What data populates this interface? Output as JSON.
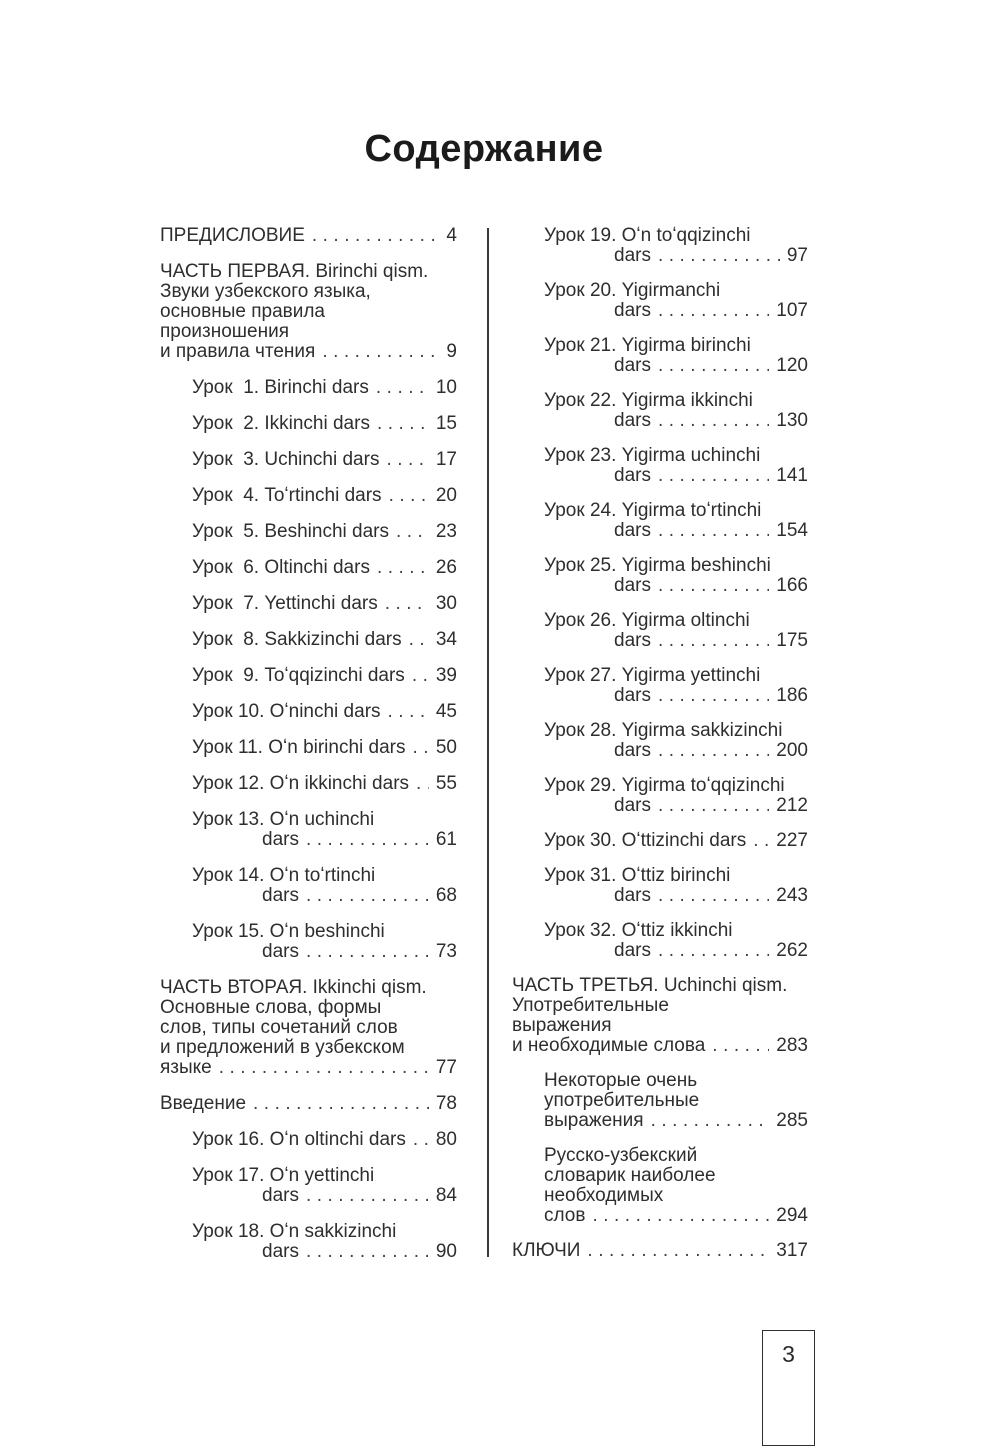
{
  "page": {
    "title": "Содержание",
    "page_number": "3"
  },
  "colors": {
    "ink": "#2e2e2e",
    "background": "#ffffff"
  },
  "left_column": {
    "items": [
      {
        "type": "chapter",
        "lines": [
          "ПРЕДИСЛОВИЕ"
        ],
        "page": "4"
      },
      {
        "type": "chapter",
        "lines": [
          "ЧАСТЬ ПЕРВАЯ. Birinchi qism.",
          "Звуки узбекского языка,",
          "основные правила",
          "произношения",
          "и правила чтения"
        ],
        "page": "9"
      },
      {
        "type": "lesson",
        "lines": [
          "Урок  1. Birinchi dars"
        ],
        "page": "10"
      },
      {
        "type": "lesson",
        "lines": [
          "Урок  2. Ikkinchi dars"
        ],
        "page": "15"
      },
      {
        "type": "lesson",
        "lines": [
          "Урок  3. Uchinchi dars"
        ],
        "page": "17"
      },
      {
        "type": "lesson",
        "lines": [
          "Урок  4. Toʻrtinchi dars"
        ],
        "page": "20"
      },
      {
        "type": "lesson",
        "lines": [
          "Урок  5. Beshinchi dars"
        ],
        "page": "23"
      },
      {
        "type": "lesson",
        "lines": [
          "Урок  6. Oltinchi dars"
        ],
        "page": "26"
      },
      {
        "type": "lesson",
        "lines": [
          "Урок  7. Yettinchi dars"
        ],
        "page": "30"
      },
      {
        "type": "lesson",
        "lines": [
          "Урок  8. Sakkizinchi dars"
        ],
        "page": "34"
      },
      {
        "type": "lesson",
        "lines": [
          "Урок  9. Toʻqqizinchi dars"
        ],
        "page": "39"
      },
      {
        "type": "lesson",
        "lines": [
          "Урок 10. Oʻninchi dars"
        ],
        "page": "45"
      },
      {
        "type": "lesson",
        "lines": [
          "Урок 11. Oʻn birinchi dars"
        ],
        "page": "50"
      },
      {
        "type": "lesson",
        "lines": [
          "Урок 12. Oʻn ikkinchi dars"
        ],
        "page": "55"
      },
      {
        "type": "lesson",
        "lines": [
          "Урок 13. Oʻn uchinchi",
          "dars"
        ],
        "page": "61"
      },
      {
        "type": "lesson",
        "lines": [
          "Урок 14. Oʻn toʻrtinchi",
          "dars"
        ],
        "page": "68"
      },
      {
        "type": "lesson",
        "lines": [
          "Урок 15. Oʻn beshinchi",
          "dars"
        ],
        "page": "73"
      },
      {
        "type": "chapter",
        "lines": [
          "ЧАСТЬ ВТОРАЯ. Ikkinchi qism.",
          "Основные слова, формы",
          "слов, типы сочетаний слов",
          "и предложений в узбекском",
          "языке"
        ],
        "page": "77"
      },
      {
        "type": "chapter",
        "lines": [
          "Введение"
        ],
        "page": "78"
      },
      {
        "type": "lesson",
        "lines": [
          "Урок 16. Oʻn oltinchi dars"
        ],
        "page": "80"
      },
      {
        "type": "lesson",
        "lines": [
          "Урок 17. Oʻn yettinchi",
          "dars"
        ],
        "page": "84"
      },
      {
        "type": "lesson",
        "lines": [
          "Урок 18. Oʻn sakkizinchi",
          "dars"
        ],
        "page": "90"
      }
    ]
  },
  "right_column": {
    "items": [
      {
        "type": "lesson",
        "lines": [
          "Урок 19. Oʻn toʻqqizinchi",
          "dars"
        ],
        "page": "97"
      },
      {
        "type": "lesson",
        "lines": [
          "Урок 20. Yigirmanchi",
          "dars"
        ],
        "page": "107"
      },
      {
        "type": "lesson",
        "lines": [
          "Урок 21. Yigirma birinchi",
          "dars"
        ],
        "page": "120"
      },
      {
        "type": "lesson",
        "lines": [
          "Урок 22. Yigirma ikkinchi",
          "dars"
        ],
        "page": "130"
      },
      {
        "type": "lesson",
        "lines": [
          "Урок 23. Yigirma uchinchi",
          "dars"
        ],
        "page": "141"
      },
      {
        "type": "lesson",
        "lines": [
          "Урок 24. Yigirma toʻrtinchi",
          "dars"
        ],
        "page": "154"
      },
      {
        "type": "lesson",
        "lines": [
          "Урок 25. Yigirma beshinchi",
          "dars"
        ],
        "page": "166"
      },
      {
        "type": "lesson",
        "lines": [
          "Урок 26. Yigirma oltinchi",
          "dars"
        ],
        "page": "175"
      },
      {
        "type": "lesson",
        "lines": [
          "Урок 27. Yigirma yettinchi",
          "dars"
        ],
        "page": "186"
      },
      {
        "type": "lesson",
        "lines": [
          "Урок 28. Yigirma sakkizinchi",
          "dars"
        ],
        "page": "200"
      },
      {
        "type": "lesson",
        "lines": [
          "Урок 29. Yigirma toʻqqizinchi",
          "dars"
        ],
        "page": "212"
      },
      {
        "type": "lesson",
        "lines": [
          "Урок 30. Oʻttizinchi dars"
        ],
        "page": "227"
      },
      {
        "type": "lesson",
        "lines": [
          "Урок 31. Oʻttiz birinchi",
          "dars"
        ],
        "page": "243"
      },
      {
        "type": "lesson",
        "lines": [
          "Урок 32. Oʻttiz ikkinchi",
          "dars"
        ],
        "page": "262"
      },
      {
        "type": "chapter",
        "lines": [
          "ЧАСТЬ ТРЕТЬЯ. Uchinchi qism.",
          "Употребительные",
          "выражения",
          "и необходимые слова"
        ],
        "page": "283"
      },
      {
        "type": "sub",
        "lines": [
          "Некоторые очень",
          "употребительные",
          "выражения"
        ],
        "page": "285"
      },
      {
        "type": "sub",
        "lines": [
          "Русско-узбекский",
          "словарик наиболее",
          "необходимых",
          "слов"
        ],
        "page": "294"
      },
      {
        "type": "chapter",
        "lines": [
          "КЛЮЧИ"
        ],
        "page": "317"
      }
    ]
  }
}
